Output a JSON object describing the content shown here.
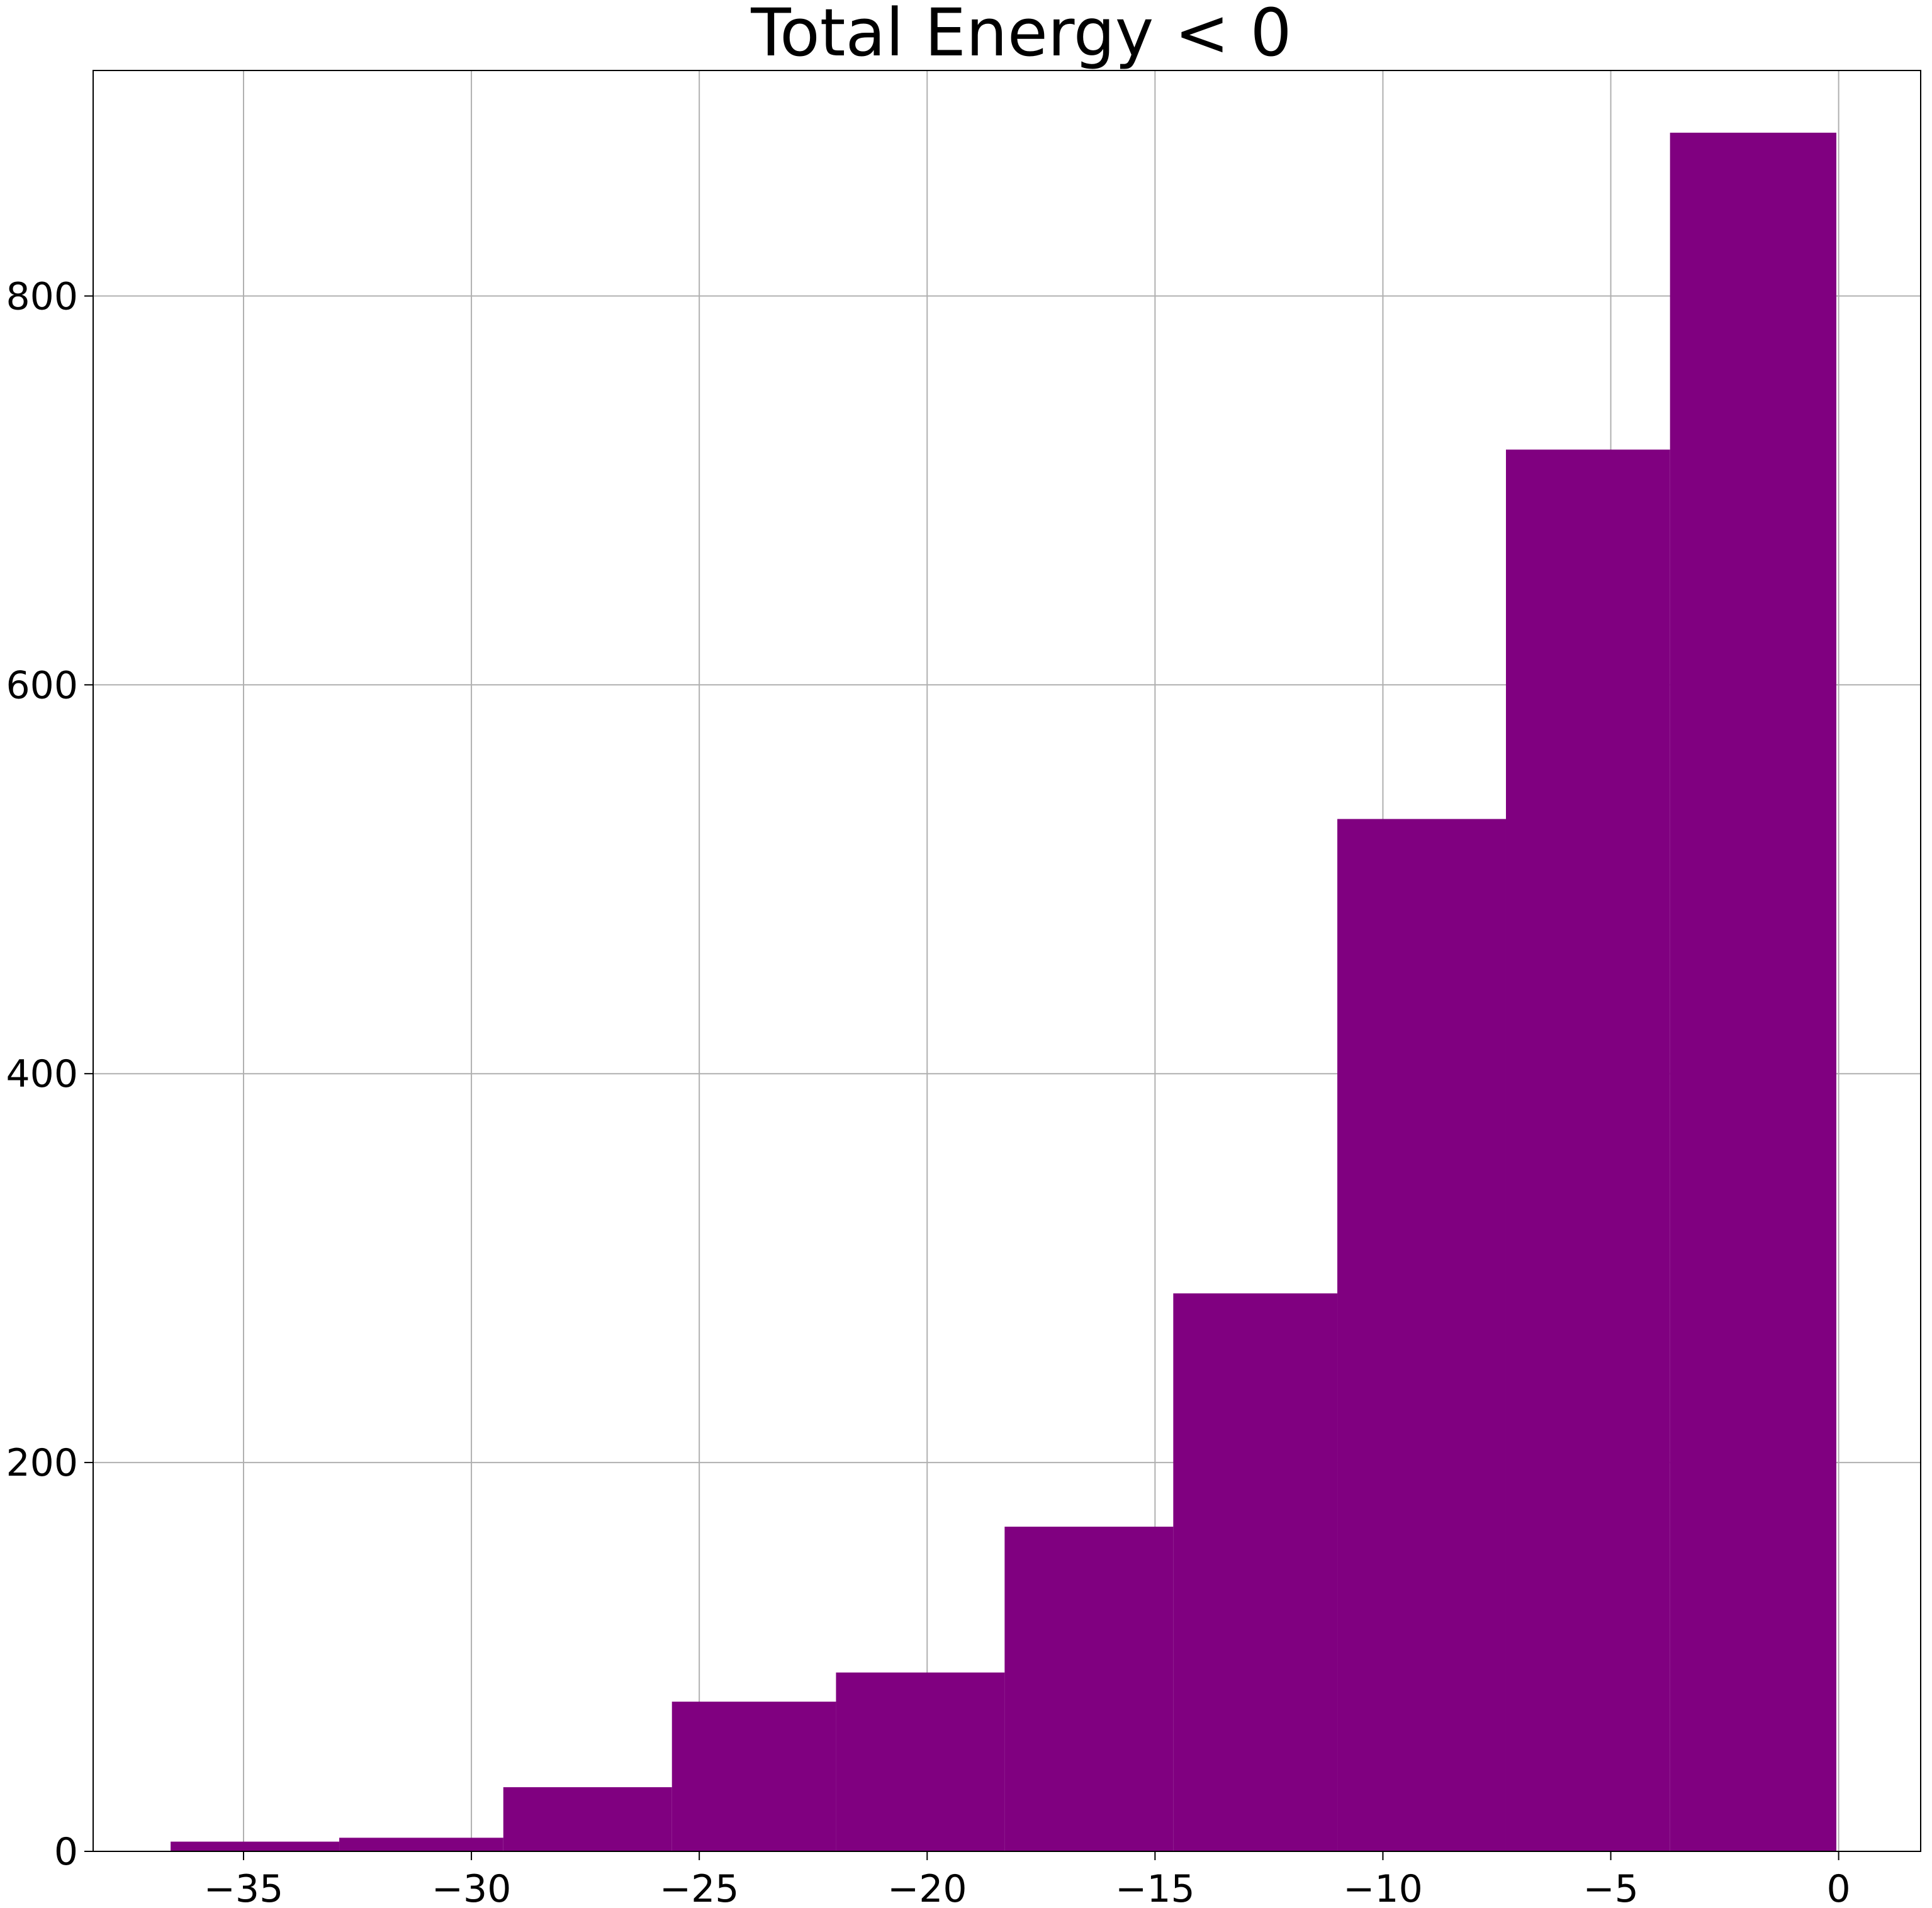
{
  "chart_data": {
    "type": "bar",
    "title": "Total Energy < 0",
    "xlabel": "",
    "ylabel": "",
    "bar_color": "#800080",
    "grid": true,
    "xlim": [
      -38.3,
      1.8
    ],
    "ylim": [
      0,
      916
    ],
    "x_ticks": [
      -35,
      -30,
      -25,
      -20,
      -15,
      -10,
      -5,
      0
    ],
    "x_tick_labels": [
      "−35",
      "−30",
      "−25",
      "−20",
      "−15",
      "−10",
      "−5",
      "0"
    ],
    "y_ticks": [
      0,
      200,
      400,
      600,
      800
    ],
    "y_tick_labels": [
      "0",
      "200",
      "400",
      "600",
      "800"
    ],
    "bins": [
      {
        "x0": -36.6,
        "x1": -32.9,
        "count": 5
      },
      {
        "x0": -32.9,
        "x1": -29.3,
        "count": 7
      },
      {
        "x0": -29.3,
        "x1": -25.6,
        "count": 33
      },
      {
        "x0": -25.6,
        "x1": -22.0,
        "count": 77
      },
      {
        "x0": -22.0,
        "x1": -18.3,
        "count": 92
      },
      {
        "x0": -18.3,
        "x1": -14.6,
        "count": 167
      },
      {
        "x0": -14.6,
        "x1": -11.0,
        "count": 287
      },
      {
        "x0": -11.0,
        "x1": -7.3,
        "count": 531
      },
      {
        "x0": -7.3,
        "x1": -3.7,
        "count": 721
      },
      {
        "x0": -3.7,
        "x1": -0.05,
        "count": 884
      }
    ]
  }
}
